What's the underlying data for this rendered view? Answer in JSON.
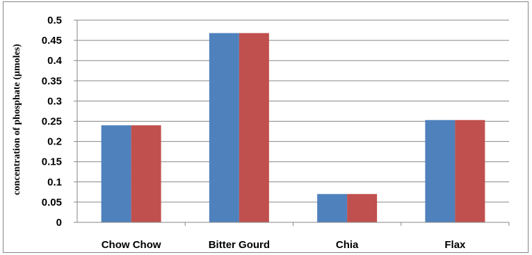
{
  "chart_data": {
    "type": "bar",
    "title": "",
    "xlabel": "",
    "ylabel": "concentration of phosphate (µmoles)",
    "categories": [
      "Chow Chow",
      "Bitter Gourd",
      "Chia",
      "Flax"
    ],
    "series": [
      {
        "values": [
          0.24,
          0.468,
          0.07,
          0.253
        ],
        "color": "#4f81bd"
      },
      {
        "values": [
          0.24,
          0.468,
          0.07,
          0.253
        ],
        "color": "#c0504d"
      }
    ],
    "ylim": [
      0,
      0.5
    ],
    "yticks": [
      "0",
      "0.05",
      "0.1",
      "0.15",
      "0.2",
      "0.25",
      "0.3",
      "0.35",
      "0.4",
      "0.45",
      "0.5"
    ],
    "grid": true,
    "legend": "none"
  }
}
